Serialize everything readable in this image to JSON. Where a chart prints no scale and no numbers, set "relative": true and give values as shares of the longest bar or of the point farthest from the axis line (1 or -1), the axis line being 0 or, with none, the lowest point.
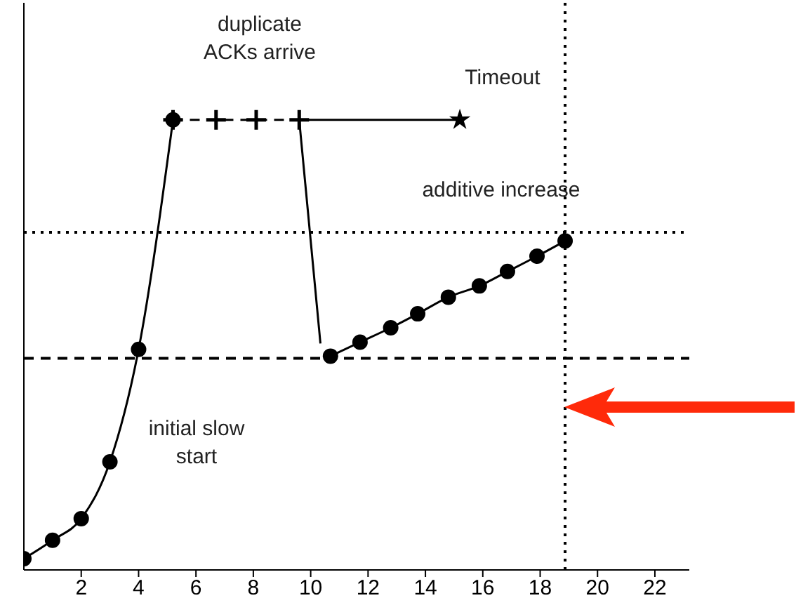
{
  "chart_data": {
    "type": "line",
    "relative": true,
    "xlim": [
      0,
      23.2
    ],
    "xticks": [
      2,
      4,
      6,
      8,
      10,
      12,
      14,
      16,
      18,
      20,
      22
    ],
    "annotations": [
      "duplicate ACKs arrive",
      "Timeout",
      "additive increase",
      "initial slow start"
    ],
    "series": [
      {
        "color": "#000000",
        "marker": "circle",
        "line_style": "solid",
        "x": [
          0,
          1,
          2,
          3,
          4,
          5.2
        ],
        "values": [
          0.025,
          0.066,
          0.114,
          0.24,
          0.49,
          1
        ]
      },
      {
        "color": "#000000",
        "marker": "cross",
        "line_style": "dashed",
        "x": [
          5.2,
          6.7,
          8.1,
          9.6
        ],
        "values": [
          1,
          1,
          1,
          1
        ]
      },
      {
        "color": "#000000",
        "marker": "none",
        "line_style": "solid",
        "x": [
          9.6,
          15.2
        ],
        "values": [
          1,
          1
        ]
      },
      {
        "type": "scatter",
        "color": "#000000",
        "marker": "star",
        "x": [
          15.2
        ],
        "values": [
          1
        ]
      },
      {
        "color": "#000000",
        "marker": "none",
        "line_style": "solid",
        "x": [
          9.6,
          10.34
        ],
        "values": [
          1,
          0.503
        ]
      },
      {
        "color": "#000000",
        "marker": "circle",
        "line_style": "solid",
        "x": [
          10.69,
          11.72,
          12.79,
          13.73,
          14.8,
          15.88,
          16.86,
          17.89,
          18.87
        ],
        "values": [
          0.475,
          0.506,
          0.538,
          0.569,
          0.606,
          0.631,
          0.663,
          0.697,
          0.731
        ]
      }
    ],
    "ref_lines": [
      {
        "axis": "y",
        "value": 0.75,
        "line_style": "dotted",
        "color": "#000000"
      },
      {
        "axis": "x",
        "value": 18.87,
        "line_style": "dotted",
        "color": "#000000"
      },
      {
        "axis": "y",
        "value": 0.47,
        "line_style": "dashed",
        "color": "#000000"
      }
    ]
  }
}
